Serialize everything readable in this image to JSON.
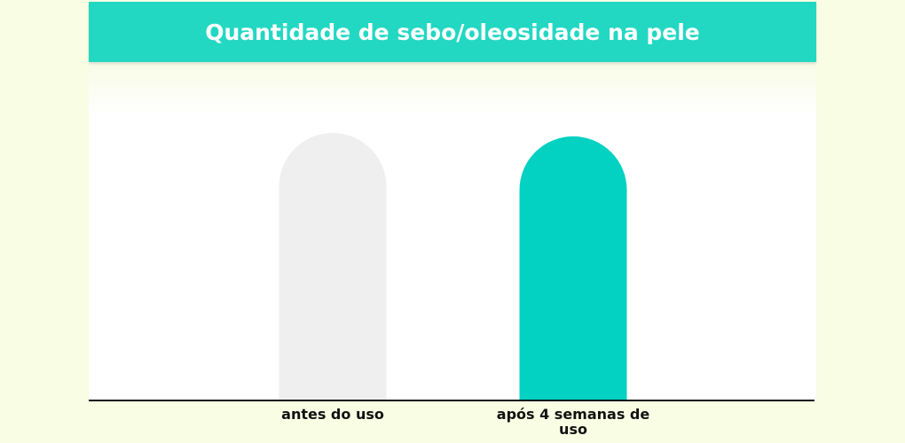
{
  "chart_data": {
    "type": "bar",
    "title": "Quantidade de sebo/oleosidade na pele",
    "categories": [
      "antes do uso",
      "após 4 semanas de uso"
    ],
    "values": [
      100,
      98.7
    ],
    "series_colors": [
      "#efefef",
      "#03d1c2"
    ]
  }
}
